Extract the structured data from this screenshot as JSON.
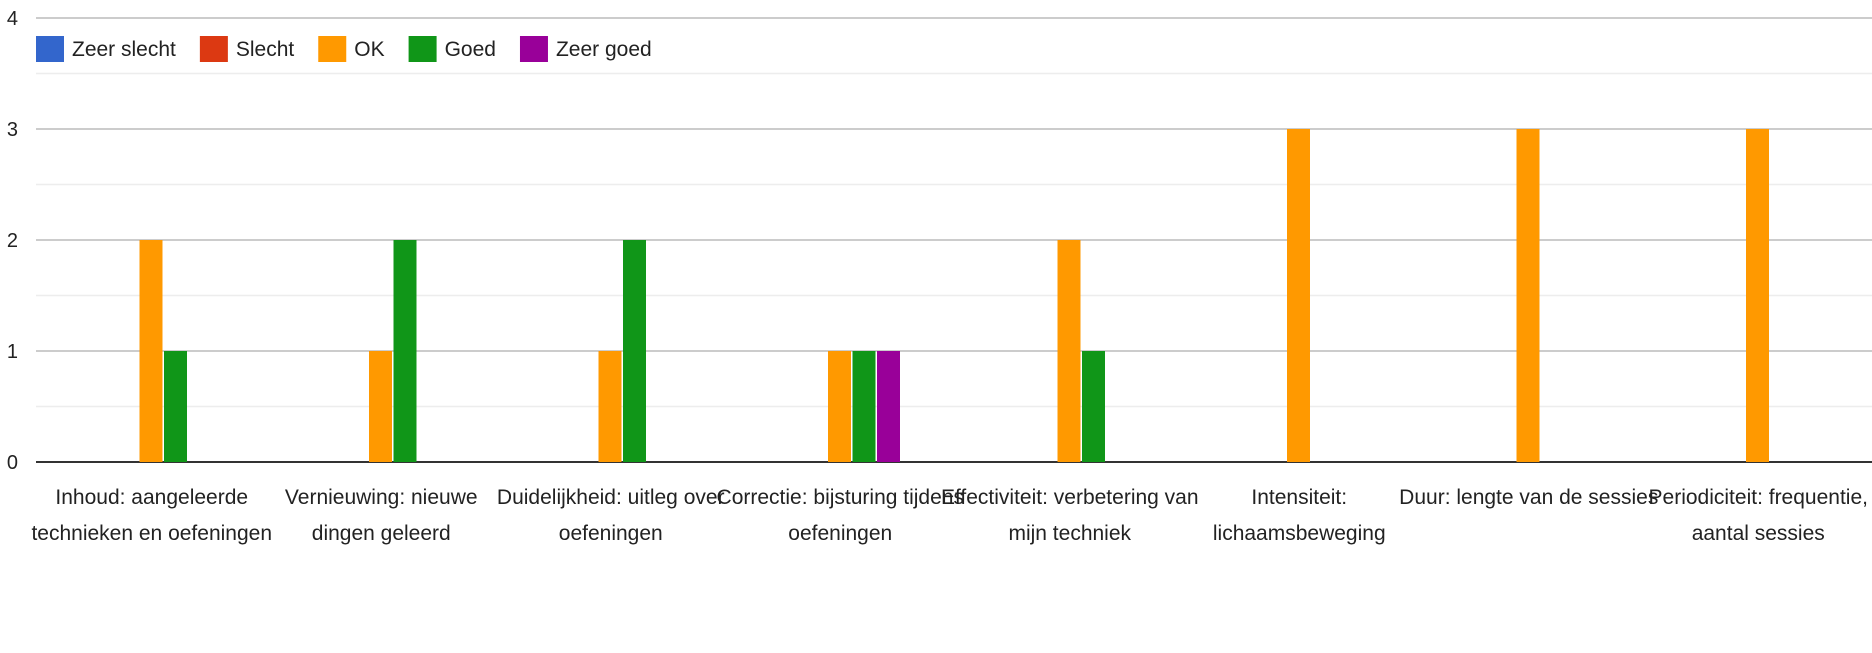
{
  "chart_data": {
    "type": "bar",
    "title": "",
    "xlabel": "",
    "ylabel": "",
    "ylim": [
      0,
      4
    ],
    "yticks": [
      0,
      1,
      2,
      3,
      4
    ],
    "grid": true,
    "minor_grid": true,
    "legend_position": "top-left",
    "categories": [
      [
        "Inhoud: aangeleerde",
        "technieken en oefeningen"
      ],
      [
        "Vernieuwing: nieuwe",
        "dingen geleerd"
      ],
      [
        "Duidelijkheid: uitleg over",
        "oefeningen"
      ],
      [
        "Correctie: bijsturing tijdens",
        "oefeningen"
      ],
      [
        "Effectiviteit: verbetering van",
        "mijn techniek"
      ],
      [
        "Intensiteit:",
        "lichaamsbeweging"
      ],
      [
        "Duur: lengte van de sessies"
      ],
      [
        "Periodiciteit: frequentie,",
        "aantal sessies"
      ]
    ],
    "series": [
      {
        "name": "Zeer slecht",
        "color": "#3366cc",
        "values": [
          0,
          0,
          0,
          0,
          0,
          0,
          0,
          0
        ]
      },
      {
        "name": "Slecht",
        "color": "#dc3912",
        "values": [
          0,
          0,
          0,
          0,
          0,
          0,
          0,
          0
        ]
      },
      {
        "name": "OK",
        "color": "#ff9900",
        "values": [
          2,
          1,
          1,
          1,
          2,
          3,
          3,
          3
        ]
      },
      {
        "name": "Goed",
        "color": "#109618",
        "values": [
          1,
          2,
          2,
          1,
          1,
          0,
          0,
          0
        ]
      },
      {
        "name": "Zeer goed",
        "color": "#990099",
        "values": [
          0,
          0,
          0,
          1,
          0,
          0,
          0,
          0
        ]
      }
    ]
  }
}
